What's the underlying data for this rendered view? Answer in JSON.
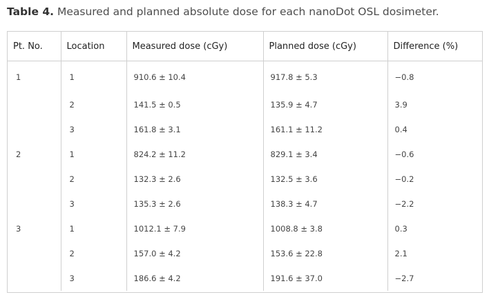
{
  "caption": {
    "label": "Table 4.",
    "text": " Measured and planned absolute dose for each nanoDot OSL dosimeter."
  },
  "table": {
    "headers": [
      "Pt. No.",
      "Location",
      "Measured dose (cGy)",
      "Planned dose (cGy)",
      "Difference (%)"
    ],
    "rows": [
      [
        "1",
        "1",
        "910.6 ± 10.4",
        "917.8 ± 5.3",
        "−0.8"
      ],
      [
        "",
        "2",
        "141.5 ± 0.5",
        "135.9 ± 4.7",
        "3.9"
      ],
      [
        "",
        "3",
        "161.8 ± 3.1",
        "161.1 ± 11.2",
        "0.4"
      ],
      [
        "2",
        "1",
        "824.2 ± 11.2",
        "829.1 ± 3.4",
        "−0.6"
      ],
      [
        "",
        "2",
        "132.3 ± 2.6",
        "132.5 ± 3.6",
        "−0.2"
      ],
      [
        "",
        "3",
        "135.3 ± 2.6",
        "138.3 ± 4.7",
        "−2.2"
      ],
      [
        "3",
        "1",
        "1012.1 ± 7.9",
        "1008.8 ± 3.8",
        "0.3"
      ],
      [
        "",
        "2",
        "157.0 ± 4.2",
        "153.6 ± 22.8",
        "2.1"
      ],
      [
        "",
        "3",
        "186.6 ± 4.2",
        "191.6 ± 37.0",
        "−2.7"
      ]
    ]
  }
}
